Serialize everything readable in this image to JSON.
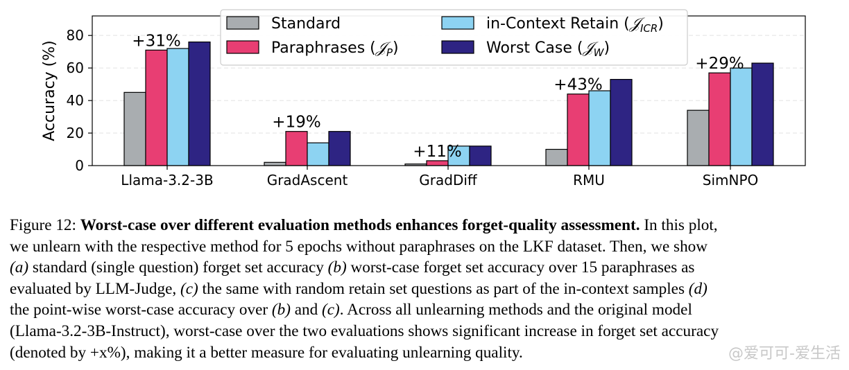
{
  "chart_data": {
    "type": "bar",
    "categories": [
      "Llama-3.2-3B",
      "GradAscent",
      "GradDiff",
      "RMU",
      "SimNPO"
    ],
    "series": [
      {
        "name": "Standard",
        "color": "#a9adb0",
        "values": [
          45,
          2,
          1,
          10,
          34
        ]
      },
      {
        "name": "Paraphrases (𝒥P)",
        "color": "#e83e73",
        "values": [
          71,
          21,
          3,
          44,
          57
        ]
      },
      {
        "name": "in-Context Retain (𝒥ICR)",
        "color": "#8dd3f2",
        "values": [
          72,
          14,
          12,
          46,
          60
        ]
      },
      {
        "name": "Worst Case (𝒥W)",
        "color": "#2e2483",
        "values": [
          76,
          21,
          12,
          53,
          63
        ]
      }
    ],
    "annotations": [
      "+31%",
      "+19%",
      "+11%",
      "+43%",
      "+29%"
    ],
    "ylabel": "Accuracy (%)",
    "ylim": [
      0,
      92
    ],
    "yticks": [
      "0",
      "20",
      "40",
      "60",
      "80"
    ],
    "grid": true,
    "legend_position": "top-center"
  },
  "caption": {
    "label": "Figure 12: ",
    "title": "Worst-case over different evaluation methods enhances forget-quality assessment.",
    "l1_rest": " In this plot,",
    "l2": "we unlearn with the respective method for 5 epochs without paraphrases on the LKF dataset. Then, we show",
    "l3_a": "(a)",
    "l3_mid": " standard (single question) forget set accuracy ",
    "l3_b": "(b)",
    "l3_end": " worst-case forget set accuracy over 15 paraphrases as",
    "l4_start": "evaluated by LLM-Judge, ",
    "l4_c": "(c)",
    "l4_mid": " the same with random retain set questions as part of the in-context samples ",
    "l4_d": "(d)",
    "l5_start": "the point-wise worst-case accuracy over ",
    "l5_b": "(b)",
    "l5_and": " and ",
    "l5_c": "(c)",
    "l5_end": ". Across all unlearning methods and the original model",
    "l6": "(Llama-3.2-3B-Instruct), worst-case over the two evaluations shows significant increase in forget set accuracy",
    "l7": "(denoted by +x%), making it a better measure for evaluating unlearning quality."
  },
  "watermark": "@爱可可-爱生活"
}
